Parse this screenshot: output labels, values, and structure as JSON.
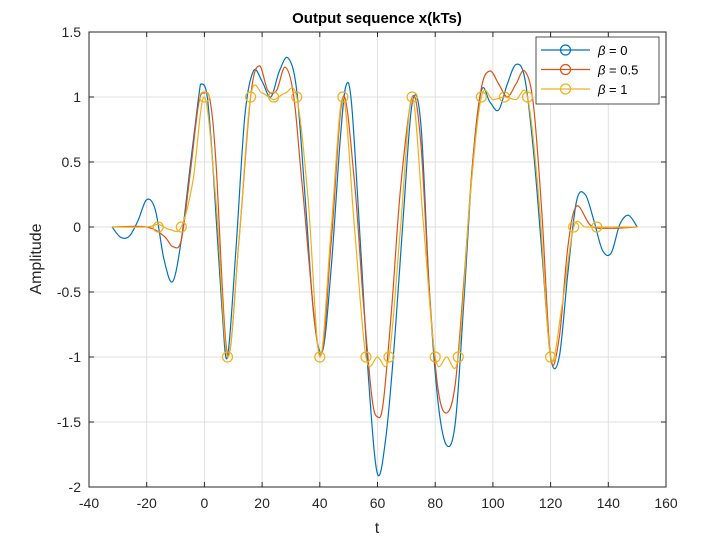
{
  "chart_data": {
    "type": "line",
    "title": "Output sequence x(kTs)",
    "xlabel": "t",
    "ylabel": "Amplitude",
    "xlim": [
      -40,
      160
    ],
    "ylim": [
      -2,
      1.5
    ],
    "xticks": [
      -40,
      -20,
      0,
      20,
      40,
      60,
      80,
      100,
      120,
      140,
      160
    ],
    "yticks": [
      -2,
      -1.5,
      -1,
      -0.5,
      0,
      0.5,
      1,
      1.5
    ],
    "xtick_labels": [
      "-40",
      "-20",
      "0",
      "20",
      "40",
      "60",
      "80",
      "100",
      "120",
      "140",
      "160"
    ],
    "ytick_labels": [
      "-2",
      "-1.5",
      "-1",
      "-0.5",
      "0",
      "0.5",
      "1",
      "1.5"
    ],
    "grid": true,
    "legend_position": "top-right",
    "series": [
      {
        "name": "β = 0",
        "legend_symbol": "β",
        "legend_value": "0",
        "color": "#0072BD",
        "x": [
          -32,
          -29,
          -26,
          -23,
          -20,
          -17,
          -14,
          -11,
          -8,
          -5,
          -2,
          -1,
          1,
          3,
          6,
          8,
          11,
          14,
          17,
          20,
          23,
          26,
          29,
          32,
          35,
          38,
          41,
          44,
          47,
          49,
          51,
          54,
          57,
          60,
          63,
          66,
          69,
          72,
          75,
          78,
          81,
          84,
          87,
          90,
          93,
          96,
          99,
          102,
          105,
          108,
          111,
          114,
          117,
          120,
          123,
          126,
          129,
          132,
          135,
          138,
          141,
          144,
          147,
          150
        ],
        "y": [
          0,
          -0.08,
          -0.07,
          0.05,
          0.21,
          0.13,
          -0.25,
          -0.42,
          -0.1,
          0.45,
          1.0,
          1.1,
          1.0,
          0.45,
          -0.6,
          -1.0,
          -0.15,
          0.85,
          1.2,
          1.12,
          1.0,
          1.2,
          1.3,
          1.05,
          0.2,
          -0.7,
          -0.95,
          -0.3,
          0.65,
          1.08,
          0.95,
          -0.1,
          -1.2,
          -1.9,
          -1.6,
          -0.85,
          0.1,
          0.95,
          0.8,
          -0.5,
          -1.35,
          -1.68,
          -1.5,
          -0.55,
          0.5,
          1.05,
          0.96,
          0.9,
          1.1,
          1.25,
          1.15,
          0.6,
          -0.2,
          -1.0,
          -1.0,
          -0.35,
          0.2,
          0.25,
          0.05,
          -0.18,
          -0.2,
          0.02,
          0.09,
          0.0
        ]
      },
      {
        "name": "β = 0.5",
        "legend_symbol": "β",
        "legend_value": "0.5",
        "color": "#D95319",
        "x": [
          -32,
          -20,
          -14,
          -11,
          -8,
          -5,
          -2,
          0,
          2,
          4,
          8,
          12,
          16,
          19,
          22,
          25,
          28,
          31,
          34,
          40,
          44,
          48,
          52,
          55,
          58,
          60,
          62,
          65,
          68,
          72,
          75,
          78,
          81,
          84,
          87,
          90,
          93,
          96,
          99,
          102,
          105,
          108,
          111,
          114,
          117,
          120,
          123,
          126,
          129,
          134,
          140,
          150
        ],
        "y": [
          0,
          0.0,
          -0.07,
          -0.15,
          -0.1,
          0.4,
          0.95,
          1.03,
          0.97,
          0.5,
          -0.98,
          -0.1,
          1.0,
          1.24,
          1.05,
          1.05,
          1.23,
          1.0,
          0.3,
          -0.98,
          -0.1,
          1.0,
          0.35,
          -0.55,
          -1.3,
          -1.46,
          -1.35,
          -0.6,
          0.3,
          1.0,
          0.65,
          -0.5,
          -1.25,
          -1.43,
          -1.2,
          -0.4,
          0.5,
          1.07,
          1.2,
          1.1,
          1.0,
          1.1,
          1.2,
          0.95,
          0.1,
          -1.0,
          -0.85,
          -0.15,
          0.16,
          0.01,
          -0.01,
          0.0
        ]
      },
      {
        "name": "β = 1",
        "legend_symbol": "β",
        "legend_value": "1",
        "color": "#EDB120",
        "x": [
          -32,
          -20,
          -16,
          -12,
          -8,
          -4,
          0,
          4,
          8,
          12,
          16,
          20,
          24,
          28,
          32,
          36,
          40,
          44,
          48,
          52,
          56,
          60,
          64,
          68,
          72,
          76,
          80,
          84,
          88,
          92,
          96,
          100,
          104,
          108,
          112,
          116,
          120,
          124,
          128,
          132,
          136,
          140,
          150
        ],
        "y": [
          0,
          0.0,
          0.02,
          -0.02,
          0.0,
          0.35,
          1.0,
          0.2,
          -1.0,
          -0.1,
          1.0,
          1.03,
          0.98,
          1.03,
          1.0,
          0.2,
          -1.0,
          0.0,
          1.0,
          0.0,
          -1.0,
          -1.0,
          -1.0,
          0.0,
          1.0,
          0.0,
          -1.0,
          -1.0,
          -1.0,
          0.2,
          1.0,
          0.98,
          1.0,
          0.98,
          1.0,
          0.2,
          -1.0,
          -0.6,
          0.0,
          0.0,
          0.0,
          0.0,
          0.0
        ],
        "markers_x": [
          -16,
          -8,
          0,
          8,
          16,
          24,
          32,
          40,
          48,
          56,
          64,
          72,
          80,
          88,
          96,
          104,
          112,
          120,
          128,
          136
        ],
        "markers_y": [
          0,
          0,
          1,
          -1,
          1,
          1,
          1,
          -1,
          1,
          -1,
          -1,
          1,
          -1,
          -1,
          1,
          1,
          1,
          -1,
          0,
          0
        ]
      }
    ]
  }
}
